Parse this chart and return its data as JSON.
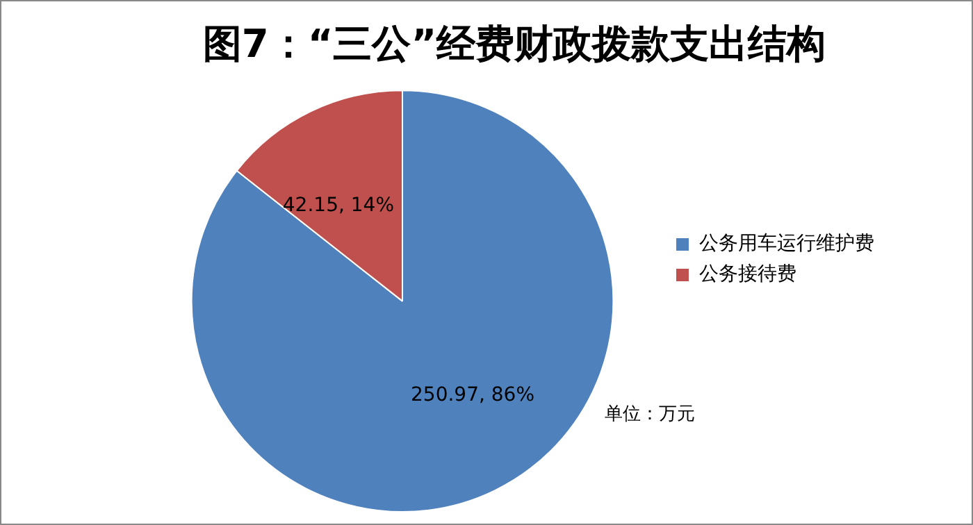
{
  "chart_data": {
    "type": "pie",
    "title": "图7：“三公”经费财政拨款支出结构",
    "categories": [
      "公务用车运行维护费",
      "公务接待费"
    ],
    "values": [
      250.97,
      42.15
    ],
    "colors": [
      "#4f81bd",
      "#c0504d"
    ],
    "value_labels": [
      "250.97, 86%",
      "42.15, 14%"
    ],
    "legend": "right",
    "annotations": [
      "单位：万元"
    ]
  }
}
